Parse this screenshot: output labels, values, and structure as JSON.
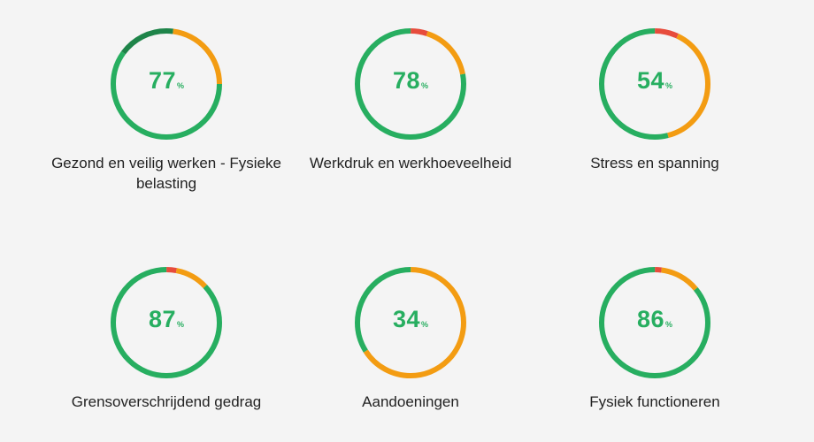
{
  "colors": {
    "green": "#27ae60",
    "dark_green": "#1e8449",
    "orange": "#f39c12",
    "red": "#e74c3c",
    "value_text": "#27ae60"
  },
  "metrics": [
    {
      "value": "77",
      "unit": "%",
      "label": "Gezond en veilig werken - Fysieke belasting",
      "segments": [
        {
          "color": "green",
          "share": 0.6
        },
        {
          "color": "dark_green",
          "share": 0.17
        },
        {
          "color": "orange",
          "share": 0.23
        }
      ],
      "start_share": 0.25
    },
    {
      "value": "78",
      "unit": "%",
      "label": "Werkdruk en werkhoeveelheid",
      "segments": [
        {
          "color": "red",
          "share": 0.05
        },
        {
          "color": "orange",
          "share": 0.17
        },
        {
          "color": "green",
          "share": 0.78
        }
      ],
      "start_share": 0.0
    },
    {
      "value": "54",
      "unit": "%",
      "label": "Stress en spanning",
      "segments": [
        {
          "color": "red",
          "share": 0.07
        },
        {
          "color": "orange",
          "share": 0.39
        },
        {
          "color": "green",
          "share": 0.54
        }
      ],
      "start_share": 0.0
    },
    {
      "value": "87",
      "unit": "%",
      "label": "Grensoverschrijdend gedrag",
      "segments": [
        {
          "color": "red",
          "share": 0.03
        },
        {
          "color": "orange",
          "share": 0.1
        },
        {
          "color": "green",
          "share": 0.87
        }
      ],
      "start_share": 0.0
    },
    {
      "value": "34",
      "unit": "%",
      "label": "Aandoeningen",
      "segments": [
        {
          "color": "orange",
          "share": 0.66
        },
        {
          "color": "green",
          "share": 0.34
        }
      ],
      "start_share": 0.0
    },
    {
      "value": "86",
      "unit": "%",
      "label": "Fysiek functioneren",
      "segments": [
        {
          "color": "red",
          "share": 0.02
        },
        {
          "color": "orange",
          "share": 0.12
        },
        {
          "color": "green",
          "share": 0.86
        }
      ],
      "start_share": 0.0
    }
  ]
}
